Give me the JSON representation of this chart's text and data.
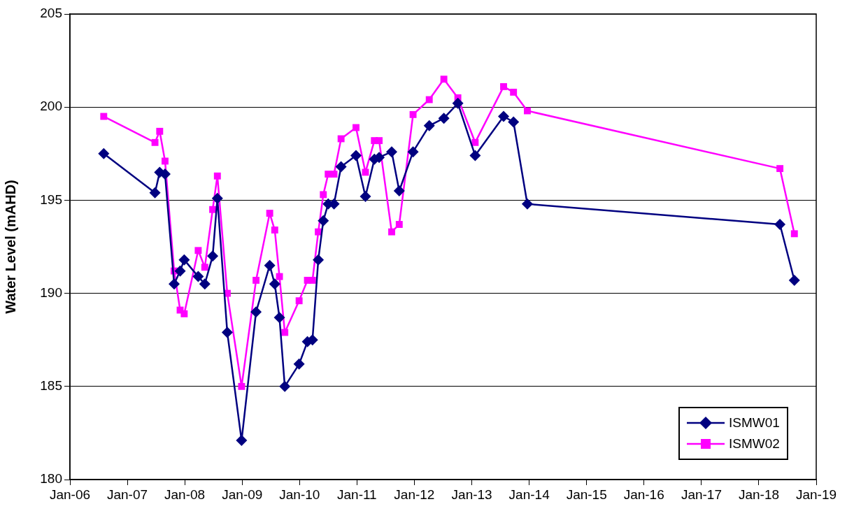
{
  "chart_data": {
    "type": "line",
    "ylabel": "Water Level (mAHD)",
    "x": [
      "2006-08-04",
      "2007-06-26",
      "2007-07-26",
      "2007-08-29",
      "2007-10-26",
      "2007-12-03",
      "2007-12-29",
      "2008-03-27",
      "2008-05-08",
      "2008-06-27",
      "2008-07-27",
      "2008-09-28",
      "2008-12-28",
      "2009-03-30",
      "2009-06-25",
      "2009-07-27",
      "2009-08-26",
      "2009-09-29",
      "2009-12-29",
      "2010-02-20",
      "2010-03-24",
      "2010-04-30",
      "2010-06-01",
      "2010-07-02",
      "2010-08-08",
      "2010-09-22",
      "2010-12-26",
      "2011-02-24",
      "2011-04-22",
      "2011-05-22",
      "2011-08-10",
      "2011-09-27",
      "2011-12-24",
      "2012-04-05",
      "2012-07-07",
      "2012-10-04",
      "2013-01-22",
      "2013-07-22",
      "2013-09-23",
      "2013-12-20",
      "2018-05-15",
      "2018-08-15"
    ],
    "series": [
      {
        "name": "ISMW01",
        "color": "#000080",
        "marker": "diamond",
        "values": [
          197.5,
          195.4,
          196.5,
          196.4,
          190.5,
          191.2,
          191.8,
          190.9,
          190.5,
          192.0,
          195.1,
          187.9,
          182.1,
          189.0,
          191.5,
          190.5,
          188.7,
          185.0,
          186.2,
          187.4,
          187.5,
          191.8,
          193.9,
          194.8,
          194.8,
          196.8,
          197.4,
          195.2,
          197.2,
          197.3,
          197.6,
          195.5,
          197.6,
          199.0,
          199.4,
          200.2,
          197.4,
          199.5,
          199.2,
          194.8,
          193.7,
          190.7
        ]
      },
      {
        "name": "ISMW02",
        "color": "#ff00ff",
        "marker": "square",
        "values": [
          199.5,
          198.1,
          198.7,
          197.1,
          191.2,
          189.1,
          188.9,
          192.3,
          191.4,
          194.5,
          196.3,
          190.0,
          185.0,
          190.7,
          194.3,
          193.4,
          190.9,
          187.9,
          189.6,
          190.7,
          190.7,
          193.3,
          195.3,
          196.4,
          196.4,
          198.3,
          198.9,
          196.5,
          198.2,
          198.2,
          193.3,
          193.7,
          199.6,
          200.4,
          201.5,
          200.5,
          198.1,
          201.1,
          200.8,
          199.8,
          196.7,
          193.2
        ]
      }
    ],
    "xlim": [
      "2006-01-01",
      "2019-01-01"
    ],
    "xticks": [
      {
        "value": "2006-01-01",
        "label": "Jan-06"
      },
      {
        "value": "2007-01-01",
        "label": "Jan-07"
      },
      {
        "value": "2008-01-01",
        "label": "Jan-08"
      },
      {
        "value": "2009-01-01",
        "label": "Jan-09"
      },
      {
        "value": "2010-01-01",
        "label": "Jan-10"
      },
      {
        "value": "2011-01-01",
        "label": "Jan-11"
      },
      {
        "value": "2012-01-01",
        "label": "Jan-12"
      },
      {
        "value": "2013-01-01",
        "label": "Jan-13"
      },
      {
        "value": "2014-01-01",
        "label": "Jan-14"
      },
      {
        "value": "2015-01-01",
        "label": "Jan-15"
      },
      {
        "value": "2016-01-01",
        "label": "Jan-16"
      },
      {
        "value": "2017-01-01",
        "label": "Jan-17"
      },
      {
        "value": "2018-01-01",
        "label": "Jan-18"
      },
      {
        "value": "2019-01-01",
        "label": "Jan-19"
      }
    ],
    "ylim": [
      180,
      205
    ],
    "yticks": [
      180,
      185,
      190,
      195,
      200,
      205
    ],
    "grid": "y",
    "legend": "bottom right",
    "line_style": "solid"
  }
}
